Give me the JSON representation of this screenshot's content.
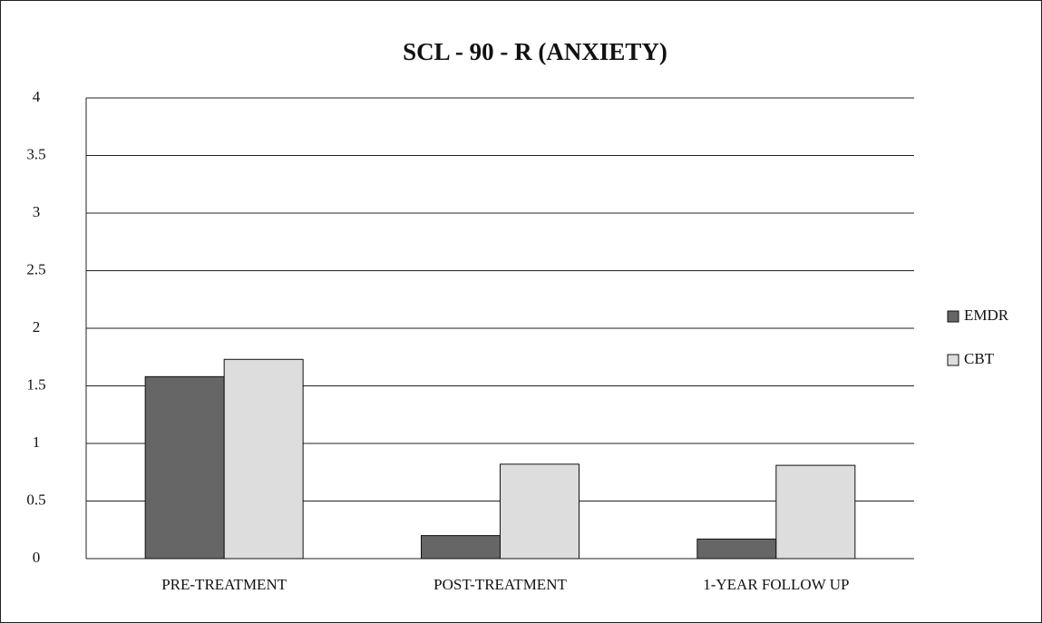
{
  "chart_data": {
    "type": "bar",
    "title": "SCL - 90 - R (ANXIETY)",
    "categories": [
      "PRE-TREATMENT",
      "POST-TREATMENT",
      "1-YEAR FOLLOW UP"
    ],
    "series": [
      {
        "name": "EMDR",
        "color": "#666666",
        "values": [
          1.58,
          0.2,
          0.17
        ]
      },
      {
        "name": "CBT",
        "color": "#dddddd",
        "values": [
          1.73,
          0.82,
          0.81
        ]
      }
    ],
    "ylim": [
      0,
      4
    ],
    "yticks": [
      0,
      0.5,
      1,
      1.5,
      2,
      2.5,
      3,
      3.5,
      4
    ],
    "grid": true,
    "legend": "right"
  }
}
